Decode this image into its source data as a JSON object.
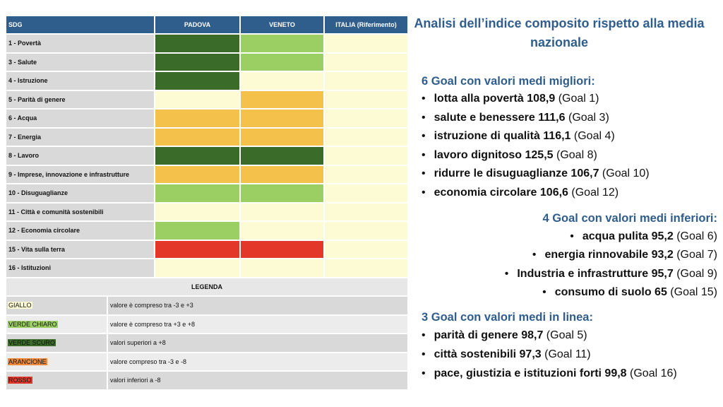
{
  "title": "Analisi dell’indice composito rispetto alla media nazionale",
  "table": {
    "headers": [
      "SDG",
      "PADOVA",
      "VENETO",
      "ITALIA (Riferimento)"
    ],
    "rows": [
      {
        "sdg": "1 - Povertà",
        "cells": [
          "#3a6b29",
          "#9ccf63",
          "#fdfbd3"
        ]
      },
      {
        "sdg": "3 - Salute",
        "cells": [
          "#3a6b29",
          "#9ccf63",
          "#fdfbd3"
        ]
      },
      {
        "sdg": "4 - Istruzione",
        "cells": [
          "#3a6b29",
          "#fdfbd3",
          "#fdfbd3"
        ]
      },
      {
        "sdg": "5 - Parità di genere",
        "cells": [
          "#fdfbd3",
          "#f4c14a",
          "#fdfbd3"
        ]
      },
      {
        "sdg": "6 - Acqua",
        "cells": [
          "#f4c14a",
          "#f4c14a",
          "#fdfbd3"
        ]
      },
      {
        "sdg": "7 - Energia",
        "cells": [
          "#f4c14a",
          "#f4c14a",
          "#fdfbd3"
        ]
      },
      {
        "sdg": "8 - Lavoro",
        "cells": [
          "#3a6b29",
          "#3a6b29",
          "#fdfbd3"
        ]
      },
      {
        "sdg": "9 - Imprese, innovazione e infrastrutture",
        "cells": [
          "#f4c14a",
          "#f4c14a",
          "#fdfbd3"
        ]
      },
      {
        "sdg": "10 - Disuguaglianze",
        "cells": [
          "#9ccf63",
          "#9ccf63",
          "#fdfbd3"
        ]
      },
      {
        "sdg": "11 - Città e comunità sostenibili",
        "cells": [
          "#fdfbd3",
          "#fdfbd3",
          "#fdfbd3"
        ]
      },
      {
        "sdg": "12 - Economia circolare",
        "cells": [
          "#9ccf63",
          "#fdfbd3",
          "#fdfbd3"
        ]
      },
      {
        "sdg": "15 - Vita sulla terra",
        "cells": [
          "#e3372a",
          "#e3372a",
          "#fdfbd3"
        ]
      },
      {
        "sdg": "16 - Istituzioni",
        "cells": [
          "#fdfbd3",
          "#fdfbd3",
          "#fdfbd3"
        ]
      }
    ],
    "legend_title": "LEGENDA",
    "legend": [
      {
        "label": "GIALLO",
        "color": "#fdfbd3",
        "description": "valore è compreso tra -3 e +3"
      },
      {
        "label": "VERDE CHIARO",
        "color": "#9ccf63",
        "description": "valore è compreso tra +3 e +8"
      },
      {
        "label": "VERDE SCURO",
        "color": "#3a6b29",
        "description": "valori superiori a +8"
      },
      {
        "label": "ARANCIONE",
        "color": "#f08a3a",
        "description": "valore compreso tra -3 e -8"
      },
      {
        "label": "ROSSO",
        "color": "#e3372a",
        "description": "valori inferiori a -8"
      }
    ]
  },
  "sections": [
    {
      "heading": "6 Goal con valori medi migliori:",
      "align": "left",
      "items": [
        {
          "text": "lotta alla povertà 108,9",
          "goal": "(Goal 1)"
        },
        {
          "text": "salute e benessere 111,6",
          "goal": "(Goal 3)"
        },
        {
          "text": "istruzione di qualità 116,1",
          "goal": "(Goal 4)"
        },
        {
          "text": "lavoro dignitoso 125,5",
          "goal": "(Goal 8)"
        },
        {
          "text": "ridurre le disuguaglianze 106,7",
          "goal": "(Goal 10)"
        },
        {
          "text": "economia circolare 106,6",
          "goal": "(Goal 12)"
        }
      ]
    },
    {
      "heading": "4 Goal con valori medi inferiori:",
      "align": "right",
      "items": [
        {
          "text": "acqua pulita 95,2",
          "goal": "(Goal 6)"
        },
        {
          "text": "energia rinnovabile 93,2",
          "goal": "(Goal 7)"
        },
        {
          "text": "Industria e infrastrutture 95,7",
          "goal": "(Goal 9)"
        },
        {
          "text": "consumo di suolo 65",
          "goal": "(Goal 15)"
        }
      ]
    },
    {
      "heading": "3 Goal con valori medi in linea:",
      "align": "left",
      "items": [
        {
          "text": "parità di genere 98,7",
          "goal": "(Goal 5)"
        },
        {
          "text": "città sostenibili 97,3",
          "goal": "(Goal 11)"
        },
        {
          "text": "pace, giustizia e istituzioni forti 99,8",
          "goal": "(Goal 16)"
        }
      ]
    }
  ]
}
